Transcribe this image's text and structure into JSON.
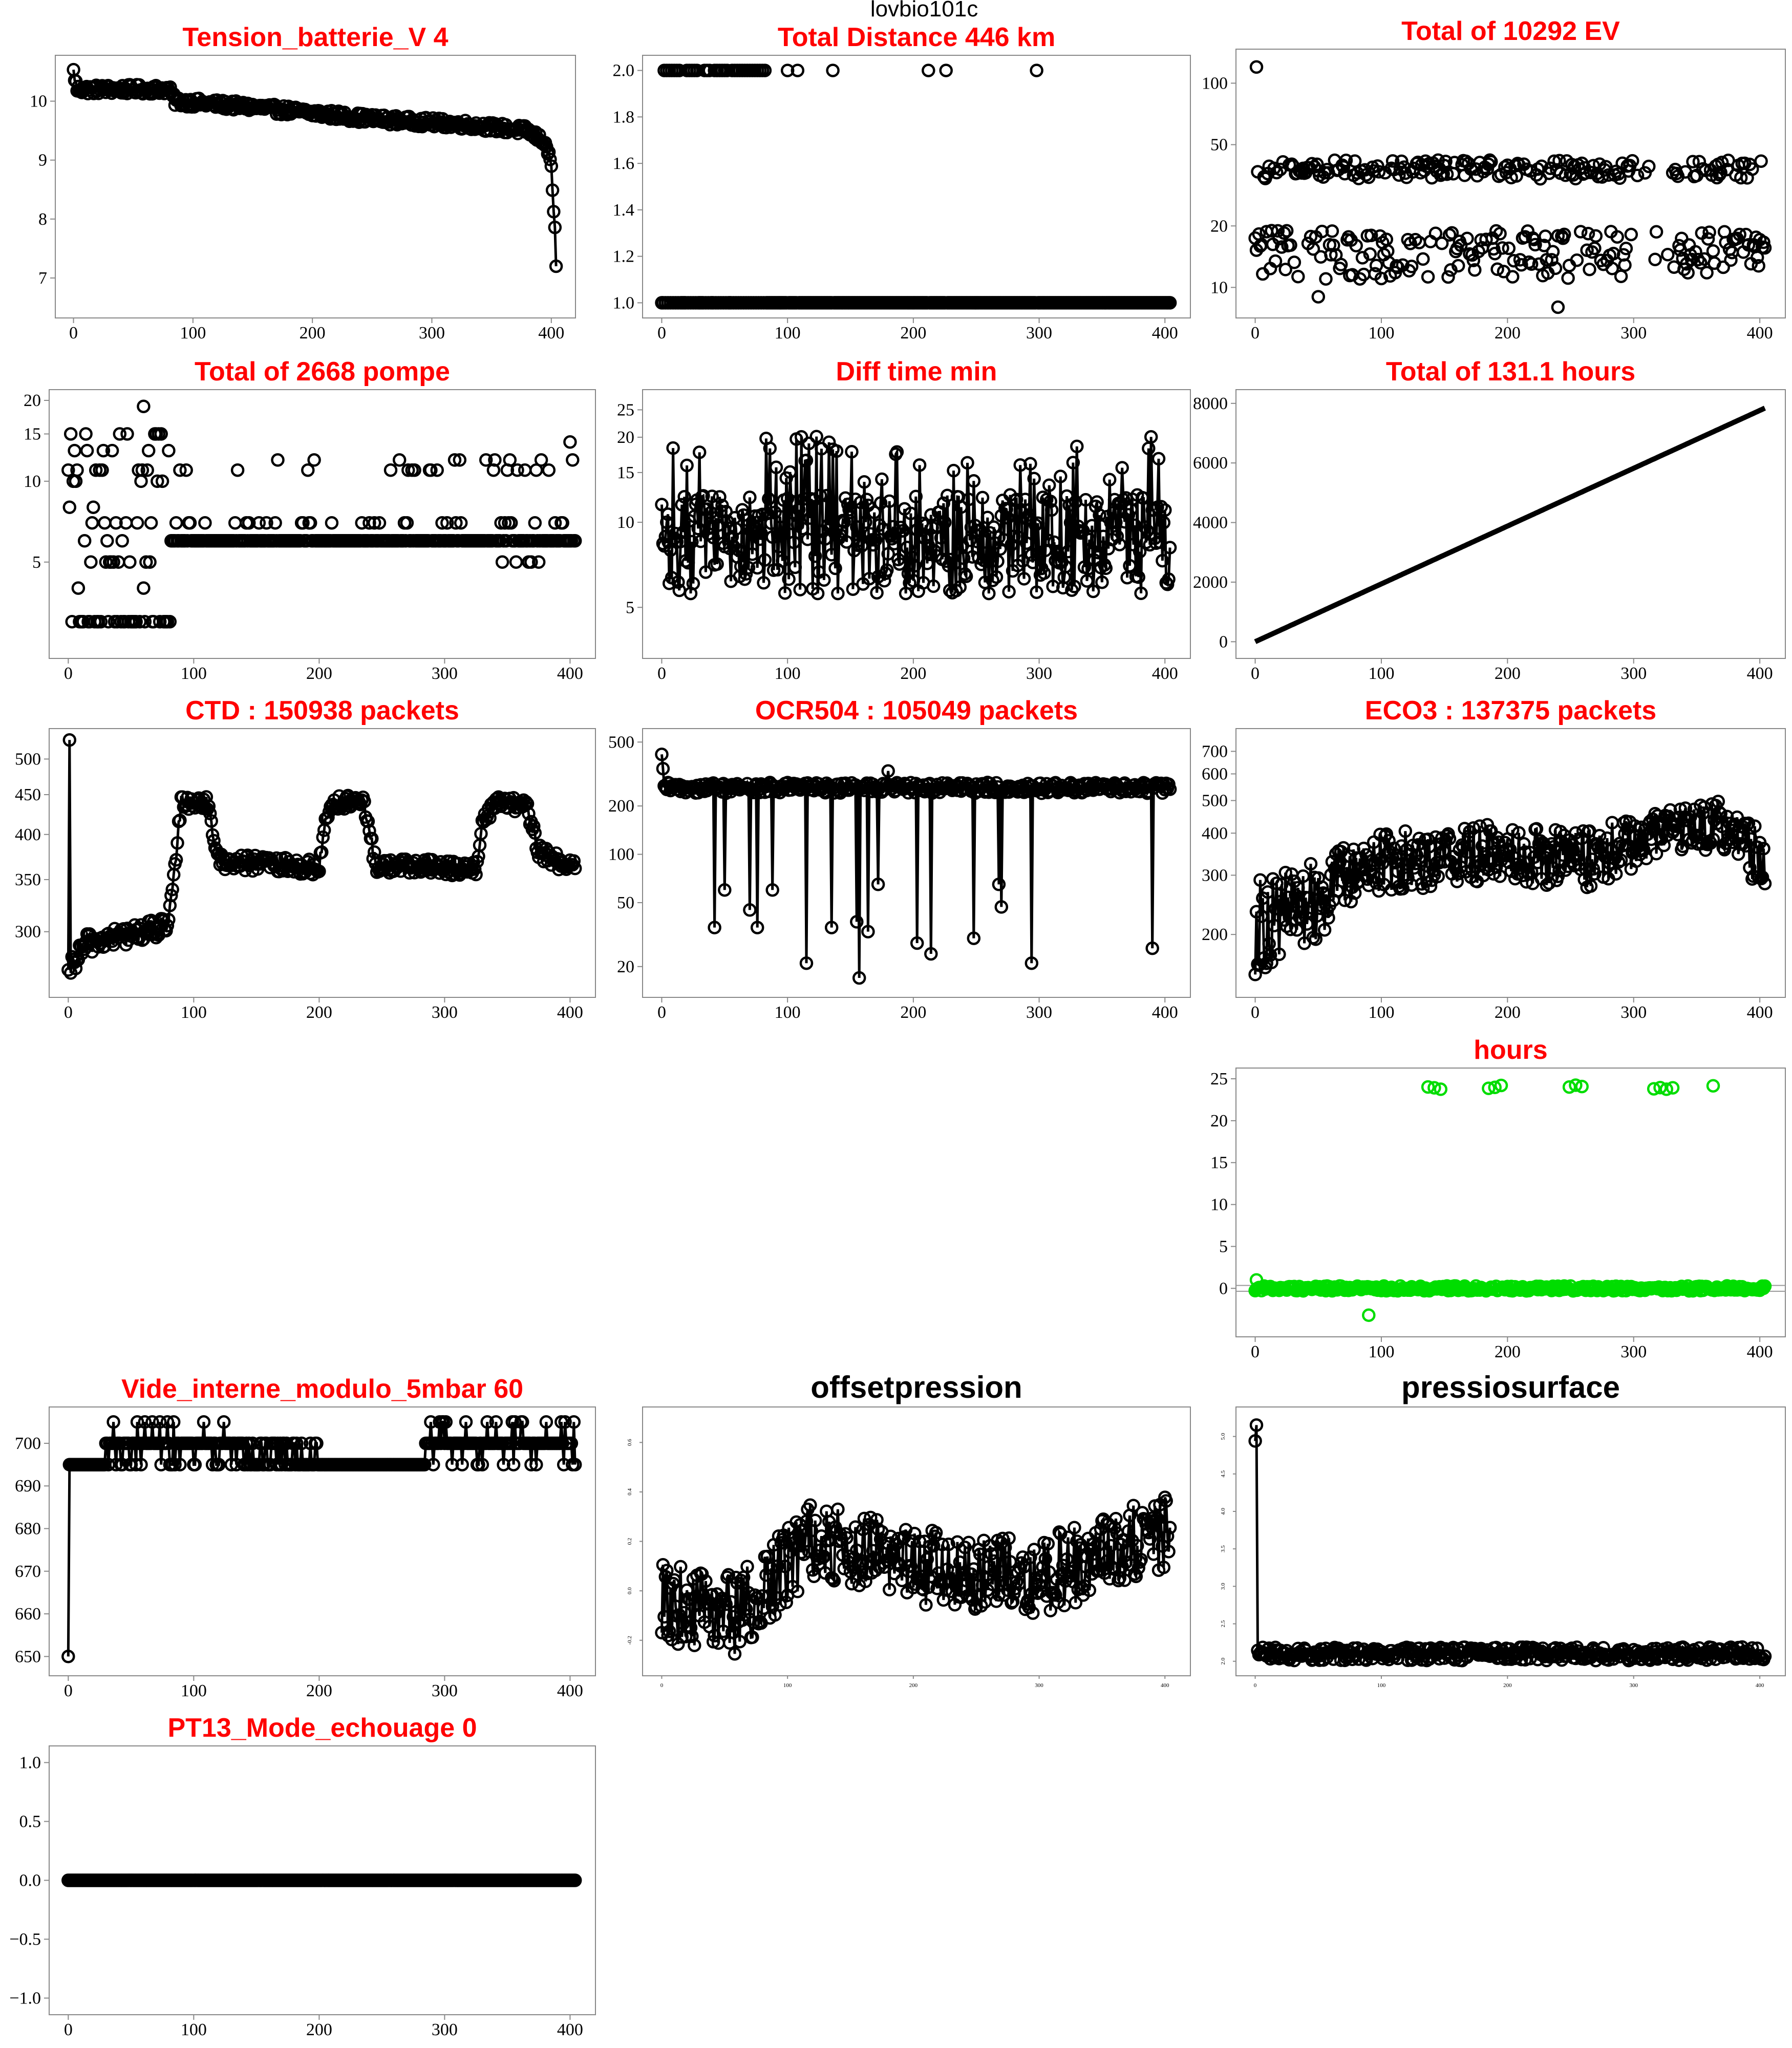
{
  "figure_title": "lovbio101c",
  "colors": {
    "title_red": "#ff0000",
    "series_black": "#000000",
    "series_green": "#00dd00",
    "frame": "#888888"
  },
  "chart_data": [
    {
      "id": "tension",
      "type": "scatter",
      "title": "Tension_batterie_V 4",
      "title_color": "red",
      "connected": true,
      "xlim": [
        0,
        405
      ],
      "ylim": [
        6.5,
        10.6
      ],
      "x_ticks": [
        0,
        100,
        200,
        300,
        400
      ],
      "y_ticks": [
        7,
        8,
        9,
        10
      ],
      "trend": {
        "segments": [
          [
            0,
            10.5
          ],
          [
            3,
            10.2
          ],
          [
            80,
            10.2
          ],
          [
            85,
            10.0
          ],
          [
            150,
            9.9
          ],
          [
            250,
            9.7
          ],
          [
            330,
            9.6
          ],
          [
            380,
            9.5
          ],
          [
            395,
            9.3
          ],
          [
            400,
            8.9
          ],
          [
            403,
            7.8
          ],
          [
            405,
            6.5
          ]
        ],
        "noise": 0.08
      },
      "n_points": 405
    },
    {
      "id": "distance",
      "type": "scatter",
      "title": "Total Distance  446  km",
      "title_color": "red",
      "connected": false,
      "xlim": [
        0,
        405
      ],
      "ylim": [
        0.98,
        2.02
      ],
      "x_ticks": [
        0,
        100,
        200,
        300,
        400
      ],
      "y_ticks": [
        "1.0",
        "1.2",
        "1.4",
        "1.6",
        "1.8",
        "2.0"
      ],
      "series_levels": [
        1.0,
        2.0
      ],
      "upper_points_x": [
        2,
        4,
        6,
        8,
        10,
        12,
        14,
        20,
        22,
        24,
        26,
        28,
        34,
        36,
        38,
        42,
        44,
        46,
        48,
        50,
        52,
        56,
        58,
        60,
        62,
        64,
        66,
        68,
        70,
        72,
        74,
        76,
        78,
        80,
        82,
        100,
        108,
        136,
        212,
        226,
        298
      ],
      "n_points": 405
    },
    {
      "id": "ev",
      "type": "scatter",
      "title": "Total of  10292  EV",
      "title_color": "red",
      "connected": false,
      "log_y": true,
      "xlim": [
        0,
        405
      ],
      "ylim": [
        8,
        130
      ],
      "x_ticks": [
        0,
        100,
        200,
        300,
        400
      ],
      "y_ticks": [
        10,
        20,
        50,
        100
      ],
      "bands": [
        {
          "center": 38,
          "spread": 4,
          "fraction": 0.5
        },
        {
          "center": 15,
          "spread": 4,
          "fraction": 0.5
        }
      ],
      "outliers": [
        [
          1,
          120
        ],
        [
          50,
          9
        ],
        [
          240,
          8
        ]
      ],
      "gap": [
        300,
        330
      ],
      "n_points": 405
    },
    {
      "id": "pompe",
      "type": "scatter",
      "title": "Total of  2668  pompe",
      "title_color": "red",
      "connected": false,
      "log_y": true,
      "xlim": [
        0,
        405
      ],
      "ylim": [
        2.4,
        20
      ],
      "x_ticks": [
        0,
        100,
        200,
        300,
        400
      ],
      "y_ticks": [
        5,
        10,
        15,
        20
      ],
      "base_level": 6,
      "n_points": 405
    },
    {
      "id": "difftime",
      "type": "scatter",
      "title": "Diff time min",
      "title_color": "red",
      "connected": true,
      "log_y": true,
      "xlim": [
        0,
        405
      ],
      "ylim": [
        3.6,
        27
      ],
      "x_ticks": [
        0,
        100,
        200,
        300,
        400
      ],
      "y_ticks": [
        5,
        10,
        15,
        20,
        25
      ],
      "trend": {
        "segments": [
          [
            0,
            9
          ],
          [
            405,
            9
          ]
        ],
        "noise": 3.5
      },
      "n_points": 405
    },
    {
      "id": "hours_total",
      "type": "line",
      "title": "Total of  131.1  hours",
      "title_color": "red",
      "connected": true,
      "xlim": [
        0,
        405
      ],
      "ylim": [
        -200,
        8100
      ],
      "x_ticks": [
        0,
        100,
        200,
        300,
        400
      ],
      "y_ticks": [
        0,
        2000,
        4000,
        6000,
        8000
      ],
      "trend": {
        "segments": [
          [
            0,
            0
          ],
          [
            405,
            7860
          ]
        ],
        "noise": 0
      },
      "n_points": 405
    },
    {
      "id": "ctd",
      "type": "scatter",
      "title": "CTD  : 150938  packets",
      "title_color": "red",
      "connected": true,
      "log_y": true,
      "xlim": [
        0,
        405
      ],
      "ylim": [
        255,
        530
      ],
      "x_ticks": [
        0,
        100,
        200,
        300,
        400
      ],
      "y_ticks": [
        300,
        350,
        400,
        450,
        500
      ],
      "trend": {
        "segments": [
          [
            0,
            260
          ],
          [
            1,
            520
          ],
          [
            2,
            270
          ],
          [
            15,
            290
          ],
          [
            80,
            305
          ],
          [
            85,
            360
          ],
          [
            90,
            440
          ],
          [
            110,
            440
          ],
          [
            120,
            370
          ],
          [
            200,
            362
          ],
          [
            205,
            415
          ],
          [
            210,
            440
          ],
          [
            235,
            440
          ],
          [
            245,
            365
          ],
          [
            325,
            362
          ],
          [
            330,
            410
          ],
          [
            340,
            440
          ],
          [
            365,
            435
          ],
          [
            375,
            380
          ],
          [
            405,
            360
          ]
        ],
        "noise": 9
      },
      "n_points": 405
    },
    {
      "id": "ocr504",
      "type": "scatter",
      "title": "OCR504  : 105049  packets",
      "title_color": "red",
      "connected": true,
      "log_y": true,
      "xlim": [
        0,
        405
      ],
      "ylim": [
        15,
        520
      ],
      "x_ticks": [
        0,
        100,
        200,
        300,
        400
      ],
      "y_ticks": [
        20,
        50,
        100,
        200,
        500
      ],
      "trend": {
        "segments": [
          [
            0,
            400
          ],
          [
            2,
            260
          ],
          [
            405,
            260
          ]
        ],
        "noise": 20
      },
      "dips": [
        [
          42,
          35
        ],
        [
          50,
          60
        ],
        [
          70,
          45
        ],
        [
          76,
          35
        ],
        [
          88,
          60
        ],
        [
          115,
          21
        ],
        [
          135,
          35
        ],
        [
          155,
          38
        ],
        [
          157,
          17
        ],
        [
          164,
          33
        ],
        [
          172,
          65
        ],
        [
          203,
          28
        ],
        [
          214,
          24
        ],
        [
          248,
          30
        ],
        [
          268,
          65
        ],
        [
          270,
          47
        ],
        [
          294,
          21
        ],
        [
          390,
          26
        ]
      ],
      "n_points": 405
    },
    {
      "id": "eco3",
      "type": "scatter",
      "title": "ECO3  : 137375  packets",
      "title_color": "red",
      "connected": true,
      "log_y": true,
      "xlim": [
        0,
        405
      ],
      "ylim": [
        140,
        760
      ],
      "x_ticks": [
        0,
        100,
        200,
        300,
        400
      ],
      "y_ticks": [
        200,
        300,
        400,
        500,
        600,
        700
      ],
      "trend": {
        "segments": [
          [
            0,
            220
          ],
          [
            40,
            250
          ],
          [
            90,
            330
          ],
          [
            200,
            360
          ],
          [
            260,
            340
          ],
          [
            340,
            420
          ],
          [
            370,
            430
          ],
          [
            405,
            330
          ]
        ],
        "noise": 70
      },
      "n_points": 405
    },
    {
      "id": "hours_daily",
      "type": "scatter",
      "title": "hours",
      "title_color": "red",
      "connected": false,
      "series_color": "green",
      "xlim": [
        0,
        405
      ],
      "ylim": [
        -4.5,
        25
      ],
      "x_ticks": [
        0,
        100,
        200,
        300,
        400
      ],
      "y_ticks": [
        0,
        5,
        10,
        15,
        20,
        25
      ],
      "upper_points_x": [
        137,
        142,
        147,
        185,
        190,
        195,
        249,
        254,
        259,
        316,
        321,
        326,
        331,
        363
      ],
      "upper_level": 24,
      "outliers": [
        [
          1,
          1
        ],
        [
          90,
          -3.2
        ]
      ],
      "n_points": 405
    },
    {
      "id": "vide",
      "type": "scatter",
      "title": "Vide_interne_modulo_5mbar 60",
      "title_color": "red",
      "connected": true,
      "xlim": [
        0,
        405
      ],
      "ylim": [
        648,
        706
      ],
      "x_ticks": [
        0,
        100,
        200,
        300,
        400
      ],
      "y_ticks": [
        650,
        660,
        670,
        680,
        690,
        700
      ],
      "step_values": [
        650,
        695,
        700,
        705
      ],
      "n_points": 405
    },
    {
      "id": "offsetpression",
      "type": "scatter",
      "title": "offsetpression",
      "title_color": "black",
      "connected": true,
      "xlim": [
        0,
        405
      ],
      "ylim": [
        -0.3,
        0.7
      ],
      "x_ticks": [
        0,
        100,
        200,
        300,
        400
      ],
      "y_ticks": [
        "-0.2",
        "0.0",
        "0.2",
        "0.4",
        "0.6"
      ],
      "trend": {
        "segments": [
          [
            0,
            -0.05
          ],
          [
            60,
            -0.1
          ],
          [
            120,
            0.2
          ],
          [
            220,
            0.08
          ],
          [
            300,
            0.05
          ],
          [
            405,
            0.25
          ]
        ],
        "noise": 0.16
      },
      "n_points": 405
    },
    {
      "id": "pressiosurface",
      "type": "scatter",
      "title": "pressiosurface",
      "title_color": "black",
      "connected": true,
      "xlim": [
        0,
        405
      ],
      "ylim": [
        1.95,
        5.25
      ],
      "x_ticks": [
        0,
        100,
        200,
        300,
        400
      ],
      "y_ticks": [
        "2.0",
        "2.5",
        "3.0",
        "3.5",
        "4.0",
        "4.5",
        "5.0"
      ],
      "trend": {
        "segments": [
          [
            0,
            5.0
          ],
          [
            1,
            5.1
          ],
          [
            2,
            2.1
          ],
          [
            405,
            2.1
          ]
        ],
        "noise": 0.09
      },
      "n_points": 405
    },
    {
      "id": "pt13",
      "type": "scatter",
      "title": "PT13_Mode_echouage  0",
      "title_color": "red",
      "connected": true,
      "xlim": [
        0,
        405
      ],
      "ylim": [
        -1.05,
        1.05
      ],
      "x_ticks": [
        0,
        100,
        200,
        300,
        400
      ],
      "y_ticks": [
        "−1.0",
        "−0.5",
        "0.0",
        "0.5",
        "1.0"
      ],
      "trend": {
        "segments": [
          [
            0,
            0
          ],
          [
            405,
            0
          ]
        ],
        "noise": 0
      },
      "n_points": 405
    }
  ]
}
